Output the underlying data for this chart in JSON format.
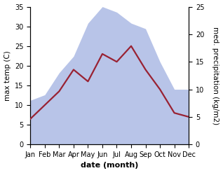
{
  "months": [
    "Jan",
    "Feb",
    "Mar",
    "Apr",
    "May",
    "Jun",
    "Jul",
    "Aug",
    "Sep",
    "Oct",
    "Nov",
    "Dec"
  ],
  "temperature": [
    6.5,
    10.0,
    13.5,
    19.0,
    16.0,
    23.0,
    21.0,
    25.0,
    19.0,
    14.0,
    8.0,
    7.0
  ],
  "precipitation": [
    8,
    9,
    13,
    16,
    22,
    25,
    24,
    22,
    21,
    15,
    10,
    10
  ],
  "temp_color": "#992233",
  "precip_fill_color": "#b8c4e8",
  "left_ylabel": "max temp (C)",
  "right_ylabel": "med. precipitation (kg/m2)",
  "xlabel": "date (month)",
  "ylim_left": [
    0,
    35
  ],
  "ylim_right": [
    0,
    25
  ],
  "background_color": "#ffffff",
  "temp_linewidth": 1.6,
  "xlabel_fontsize": 8,
  "ylabel_fontsize": 7.5,
  "tick_fontsize": 7
}
